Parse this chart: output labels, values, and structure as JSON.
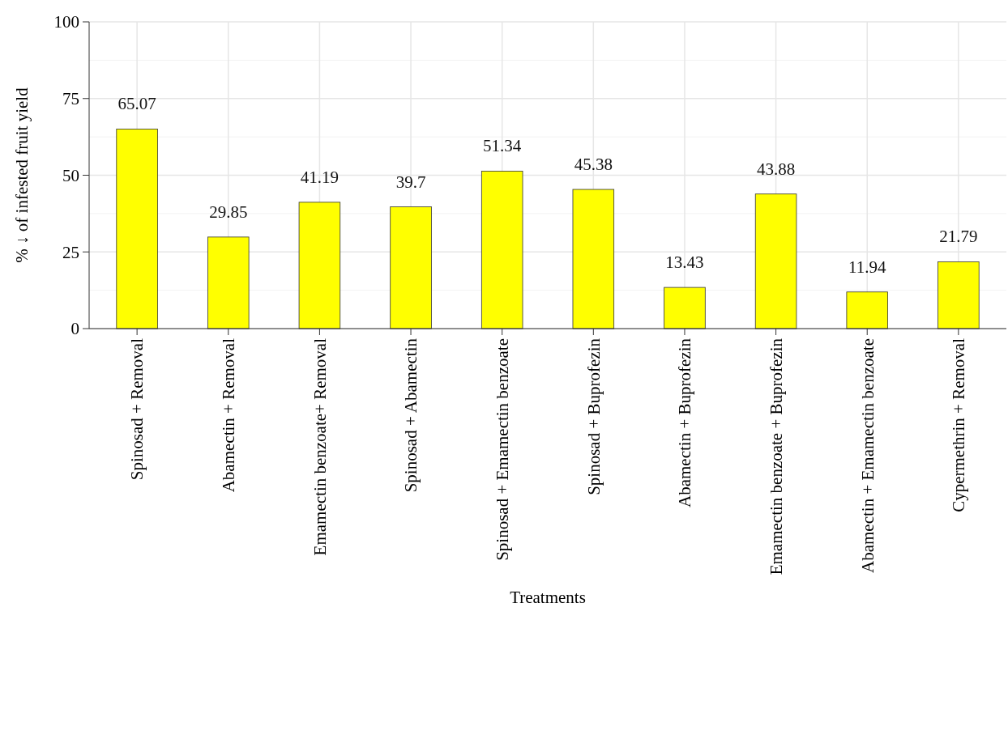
{
  "chart_data": {
    "type": "bar",
    "xlabel": "Treatments",
    "ylabel": "% ↓ of infested fruit yield",
    "categories": [
      "Spinosad + Removal",
      "Abamectin + Removal",
      "Emamectin benzoate+ Removal",
      "Spinosad + Abamectin",
      "Spinosad + Emamectin benzoate",
      "Spinosad + Buprofezin",
      "Abamectin + Buprofezin",
      "Emamectin benzoate + Buprofezin",
      "Abamectin + Emamectin benzoate",
      "Cypermethrin + Removal"
    ],
    "values": [
      65.07,
      29.85,
      41.19,
      39.7,
      51.34,
      45.38,
      13.43,
      43.88,
      11.94,
      21.79
    ],
    "color": "#ffff00",
    "ylim": [
      0,
      100
    ],
    "yticks": [
      0,
      25,
      50,
      75,
      100
    ],
    "grid": true,
    "data_labels": true
  }
}
